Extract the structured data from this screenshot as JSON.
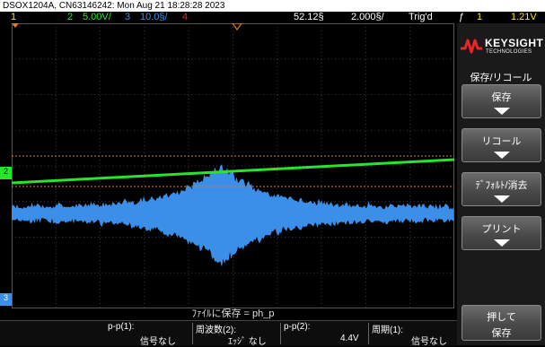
{
  "header": {
    "info": "DSOX1204A, CN63146242: Mon Aug 21 18:28:28 2023"
  },
  "status": {
    "ch1": "1",
    "ch2_num": "2",
    "ch2_scale": "5.00V/",
    "ch3_num": "3",
    "ch3_scale": "10.0§/",
    "ch4": "4",
    "time_delay": "52.12§",
    "time_scale": "2.000§/",
    "trigger_state": "Trig'd",
    "trigger_edge": "ƒ",
    "trigger_source": "1",
    "trigger_level": "1.21V"
  },
  "markers": {
    "ch2_ground": "2",
    "ch3_ground": "3"
  },
  "sidebar": {
    "brand": "KEYSIGHT",
    "brand_sub": "TECHNOLOGIES",
    "menu_title": "保存/リコール",
    "keys": [
      {
        "label": "保存"
      },
      {
        "label": "リコール"
      },
      {
        "label": "ﾃﾞﾌｫﾙﾄ/消去"
      },
      {
        "label": "プリント"
      }
    ],
    "press_key": {
      "line1": "押して",
      "line2": "保存"
    }
  },
  "message": "ﾌｧｲﾙに保存 = ph_p",
  "measurements": [
    {
      "name": "p-p(1):",
      "value": "信号なし"
    },
    {
      "name": "周波数(2):",
      "value": "ｴｯｼﾞ なし"
    },
    {
      "name": "p-p(2):",
      "value": "4.4V"
    },
    {
      "name": "周期(1):",
      "value": "信号なし"
    }
  ],
  "colors": {
    "ch1": "#f5e617",
    "ch2": "#27e62a",
    "ch3": "#3b8fe8",
    "ch4": "#e8262a",
    "cursor": "#e07a2a",
    "grid": "#3a3a3a"
  }
}
